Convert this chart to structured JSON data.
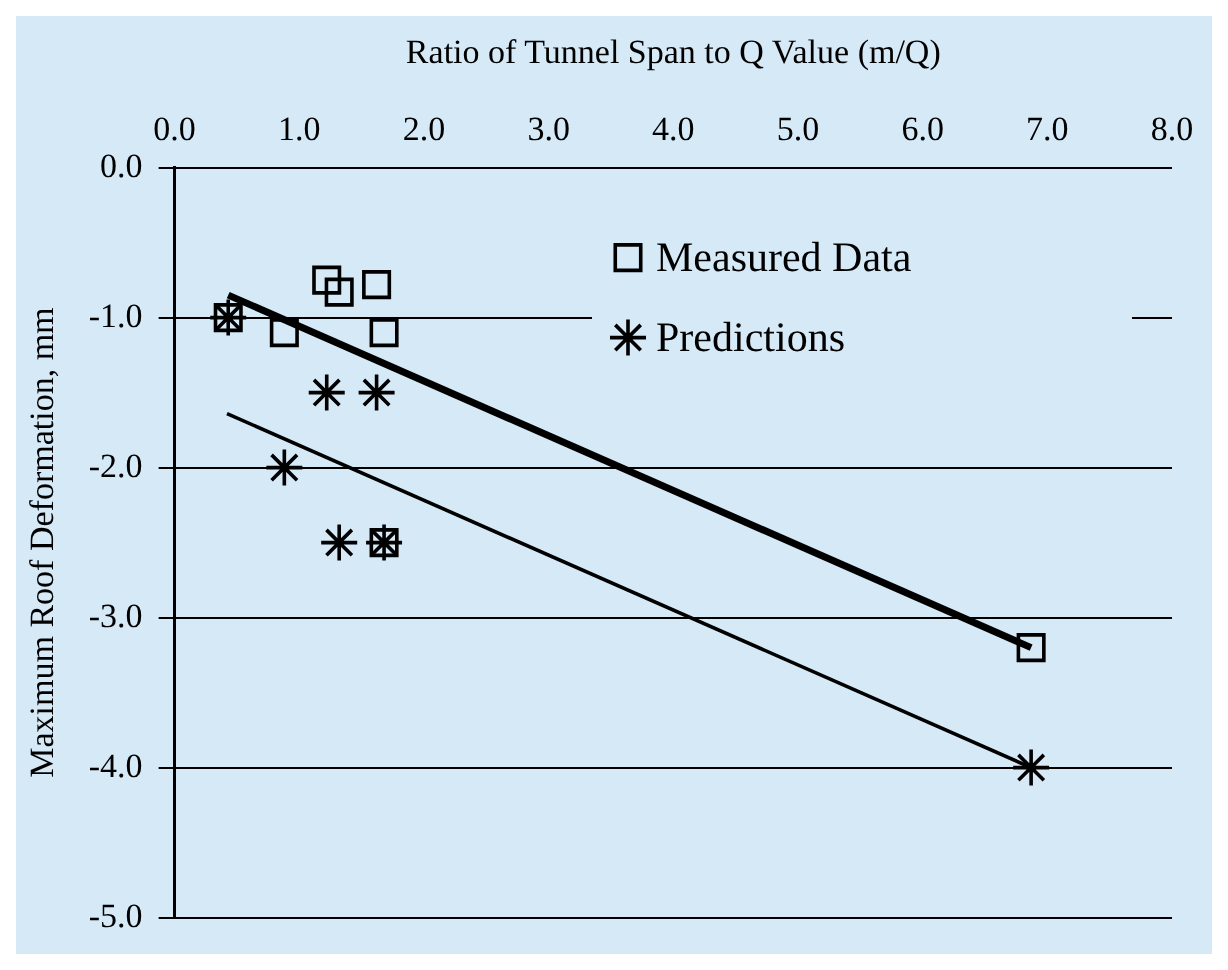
{
  "chart_data": {
    "type": "scatter",
    "xlabel": "Ratio of Tunnel Span to Q Value (m/Q)",
    "ylabel": "Maximum Roof Deformation, mm",
    "xlim": [
      0,
      8
    ],
    "xticks": [
      {
        "value": 0,
        "label": "0.0"
      },
      {
        "value": 1,
        "label": "1.0"
      },
      {
        "value": 2,
        "label": "2.0"
      },
      {
        "value": 3,
        "label": "3.0"
      },
      {
        "value": 4,
        "label": "4.0"
      },
      {
        "value": 5,
        "label": "5.0"
      },
      {
        "value": 6,
        "label": "6.0"
      },
      {
        "value": 7,
        "label": "7.0"
      },
      {
        "value": 8,
        "label": "8.0"
      }
    ],
    "ylim": [
      -5,
      0
    ],
    "yticks": [
      {
        "value": -5,
        "label": "-5.0"
      },
      {
        "value": -4,
        "label": "-4.0"
      },
      {
        "value": -3,
        "label": "-3.0"
      },
      {
        "value": -2,
        "label": "-2.0"
      },
      {
        "value": -1,
        "label": "-1.0"
      },
      {
        "value": 0,
        "label": "0.0"
      }
    ],
    "grid": "y",
    "legend": "top right",
    "series": [
      {
        "name": "Measured Data",
        "marker": "square",
        "color": "#000000",
        "x": [
          0.43,
          1.22,
          1.32,
          1.62,
          0.88,
          1.68,
          1.68,
          6.87
        ],
        "values": [
          -1.0,
          -0.75,
          -0.83,
          -0.78,
          -1.1,
          -1.1,
          -2.5,
          -3.2
        ]
      },
      {
        "name": "Predictions",
        "marker": "cross",
        "color": "#000000",
        "x": [
          0.43,
          1.22,
          1.62,
          0.88,
          1.32,
          1.68,
          6.87
        ],
        "values": [
          -1.0,
          -1.5,
          -1.5,
          -2.0,
          -2.5,
          -2.5,
          -4.0
        ]
      },
      {
        "type": "line",
        "marker": "none",
        "line_style": "solid",
        "color": "#000000",
        "x": [
          0.43,
          6.87
        ],
        "values": [
          -0.85,
          -3.2
        ]
      },
      {
        "type": "line",
        "marker": "none",
        "line_style": "solid",
        "color": "#000000",
        "x": [
          0.42,
          6.87
        ],
        "values": [
          -1.64,
          -4.0
        ]
      }
    ]
  }
}
